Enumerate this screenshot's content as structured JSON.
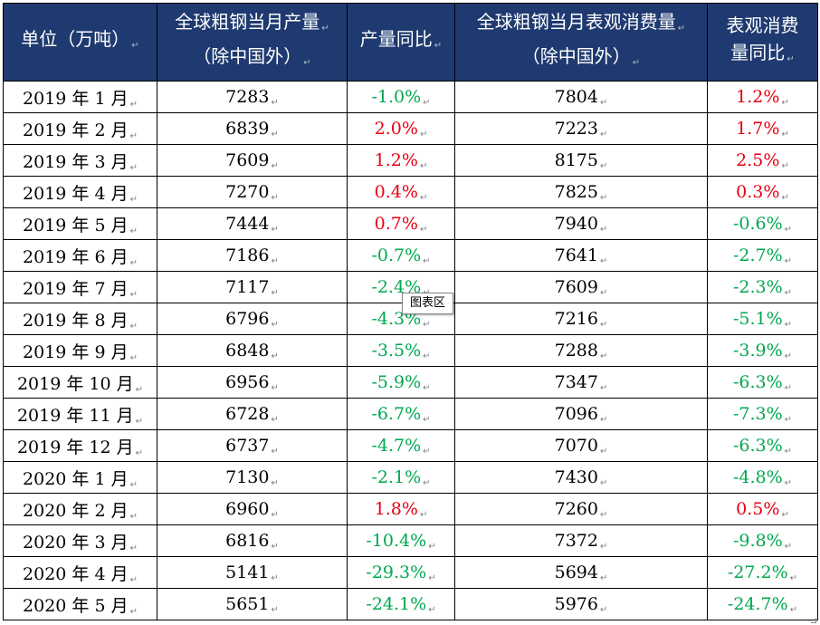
{
  "table": {
    "headers": [
      {
        "line1": "单位（万吨）",
        "line2": ""
      },
      {
        "line1": "全球粗钢当月产量",
        "line2": "（除中国外）"
      },
      {
        "line1": "产量同比",
        "line2": ""
      },
      {
        "line1": "全球粗钢当月表观消费量",
        "line2": "（除中国外）"
      },
      {
        "line1": "表观消费",
        "line2": "量同比"
      }
    ],
    "rows": [
      {
        "month": "2019 年 1 月",
        "production": "7283",
        "prod_yoy": "-1.0%",
        "consumption": "7804",
        "cons_yoy": "1.2%"
      },
      {
        "month": "2019 年 2 月",
        "production": "6839",
        "prod_yoy": "2.0%",
        "consumption": "7223",
        "cons_yoy": "1.7%"
      },
      {
        "month": "2019 年 3 月",
        "production": "7609",
        "prod_yoy": "1.2%",
        "consumption": "8175",
        "cons_yoy": "2.5%"
      },
      {
        "month": "2019 年 4 月",
        "production": "7270",
        "prod_yoy": "0.4%",
        "consumption": "7825",
        "cons_yoy": "0.3%"
      },
      {
        "month": "2019 年 5 月",
        "production": "7444",
        "prod_yoy": "0.7%",
        "consumption": "7940",
        "cons_yoy": "-0.6%"
      },
      {
        "month": "2019 年 6 月",
        "production": "7186",
        "prod_yoy": "-0.7%",
        "consumption": "7641",
        "cons_yoy": "-2.7%"
      },
      {
        "month": "2019 年 7 月",
        "production": "7117",
        "prod_yoy": "-2.4%",
        "consumption": "7609",
        "cons_yoy": "-2.3%"
      },
      {
        "month": "2019 年 8 月",
        "production": "6796",
        "prod_yoy": "-4.3%",
        "consumption": "7216",
        "cons_yoy": "-5.1%"
      },
      {
        "month": "2019 年 9 月",
        "production": "6848",
        "prod_yoy": "-3.5%",
        "consumption": "7288",
        "cons_yoy": "-3.9%"
      },
      {
        "month": "2019 年 10 月",
        "production": "6956",
        "prod_yoy": "-5.9%",
        "consumption": "7347",
        "cons_yoy": "-6.3%"
      },
      {
        "month": "2019 年 11 月",
        "production": "6728",
        "prod_yoy": "-6.7%",
        "consumption": "7096",
        "cons_yoy": "-7.3%"
      },
      {
        "month": "2019 年 12 月",
        "production": "6737",
        "prod_yoy": "-4.7%",
        "consumption": "7070",
        "cons_yoy": "-6.3%"
      },
      {
        "month": "2020 年 1 月",
        "production": "7130",
        "prod_yoy": "-2.1%",
        "consumption": "7430",
        "cons_yoy": "-4.8%"
      },
      {
        "month": "2020 年 2 月",
        "production": "6960",
        "prod_yoy": "1.8%",
        "consumption": "7260",
        "cons_yoy": "0.5%"
      },
      {
        "month": "2020 年 3 月",
        "production": "6816",
        "prod_yoy": "-10.4%",
        "consumption": "7372",
        "cons_yoy": "-9.8%"
      },
      {
        "month": "2020 年 4 月",
        "production": "5141",
        "prod_yoy": "-29.3%",
        "consumption": "5694",
        "cons_yoy": "-27.2%"
      },
      {
        "month": "2020 年 5 月",
        "production": "5651",
        "prod_yoy": "-24.1%",
        "consumption": "5976",
        "cons_yoy": "-24.7%"
      }
    ]
  },
  "tooltip": {
    "label": "图表区"
  },
  "colors": {
    "header_bg": "#1f3a70",
    "header_text": "#ffffff",
    "positive": "#e60012",
    "negative": "#00a84f",
    "border": "#000000"
  },
  "icons": {
    "paragraph_mark": "↵"
  }
}
